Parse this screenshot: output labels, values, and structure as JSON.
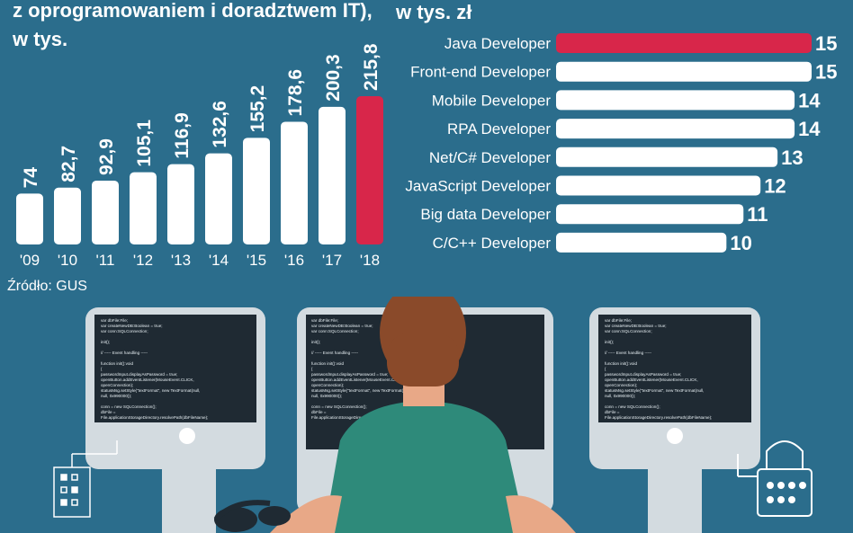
{
  "left": {
    "title_lines": [
      "z oprogramowaniem i doradztwem IT),",
      "w tys."
    ],
    "source": "Źródło: GUS"
  },
  "right": {
    "title": "w tys. zł"
  },
  "colors": {
    "background": "#2b6d8c",
    "bar": "#ffffff",
    "highlight": "#d8264a",
    "monitor": "#1f2a33",
    "monitor_frame": "#d3dbe0",
    "shirt": "#2e8a7a",
    "hair": "#8a4a2a",
    "skin": "#e8a887"
  },
  "screen_code": {
    "lines": [
      "var dbFile:File;",
      "var createNewDB:Boolean = true;",
      "var conn:SQLConnection;",
      "",
      "init();",
      "",
      "// ----- Event handling -----",
      "",
      "function init():void",
      "{",
      "  passwordInput.displayAsPassword = true;",
      "  openButton.addEventListener(MouseEvent.CLICK,",
      "  openConnection);",
      "  statusMsg.setStyle(\"textFormat\", new TextFormat(null,",
      "  null, 0x990000));",
      "",
      "  conn = new SQLConnection();",
      "  dbFile =",
      "  File.applicationStorageDirectory.resolvePath(dbFileName);"
    ]
  },
  "chart_data": [
    {
      "type": "bar",
      "orientation": "vertical",
      "categories": [
        "'09",
        "'10",
        "'11",
        "'12",
        "'13",
        "'14",
        "'15",
        "'16",
        "'17",
        "'18"
      ],
      "values": [
        74,
        82.7,
        92.9,
        105.1,
        116.9,
        132.6,
        155.2,
        178.6,
        200.3,
        215.8
      ],
      "value_labels": [
        "74",
        "82,7",
        "92,9",
        "105,1",
        "116,9",
        "132,6",
        "155,2",
        "178,6",
        "200,3",
        "215,8"
      ],
      "highlight_index": 9,
      "title": "z oprogramowaniem i doradztwem IT), w tys.",
      "ylim": [
        0,
        215.8
      ]
    },
    {
      "type": "bar",
      "orientation": "horizontal",
      "categories": [
        "Java Developer",
        "Front-end Developer",
        "Mobile Developer",
        "RPA Developer",
        "Net/C# Developer",
        "JavaScript Developer",
        "Big data Developer",
        "C/C++ Developer"
      ],
      "values": [
        15,
        15,
        14,
        14,
        13,
        12,
        11,
        10
      ],
      "value_labels": [
        "15",
        "15",
        "14",
        "14",
        "13",
        "12",
        "11",
        "10"
      ],
      "highlight_index": 0,
      "title": "w tys. zł",
      "xlim": [
        0,
        15
      ]
    }
  ]
}
